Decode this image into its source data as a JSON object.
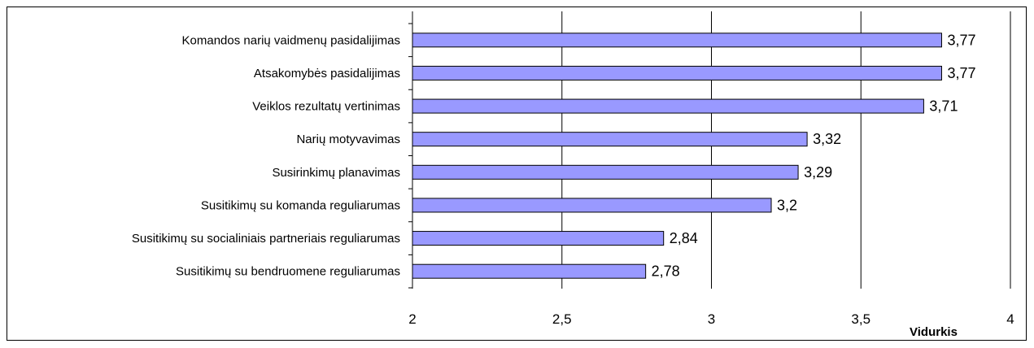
{
  "chart_data": {
    "type": "bar",
    "orientation": "horizontal",
    "categories": [
      "Komandos narių vaidmenų pasidalijimas",
      "Atsakomybės pasidalijimas",
      "Veiklos rezultatų vertinimas",
      "Narių motyvavimas",
      "Susirinkimų planavimas",
      "Susitikimų su komanda reguliarumas",
      "Susitikimų su socialiniais partneriais reguliarumas",
      "Susitikimų su bendruomene reguliarumas"
    ],
    "values": [
      3.77,
      3.77,
      3.71,
      3.32,
      3.29,
      3.2,
      2.84,
      2.78
    ],
    "value_labels": [
      "3,77",
      "3,77",
      "3,71",
      "3,32",
      "3,29",
      "3,2",
      "2,84",
      "2,78"
    ],
    "xlim": [
      2,
      4
    ],
    "xticks": [
      2,
      2.5,
      3,
      3.5,
      4
    ],
    "xtick_labels": [
      "2",
      "2,5",
      "3",
      "3,5",
      "4"
    ],
    "xlabel": "Vidurkis",
    "ylabel": "",
    "title": "",
    "grid": "vertical",
    "legend": "none",
    "bar_color": "#9999ff",
    "bar_edge_color": "#000000"
  }
}
